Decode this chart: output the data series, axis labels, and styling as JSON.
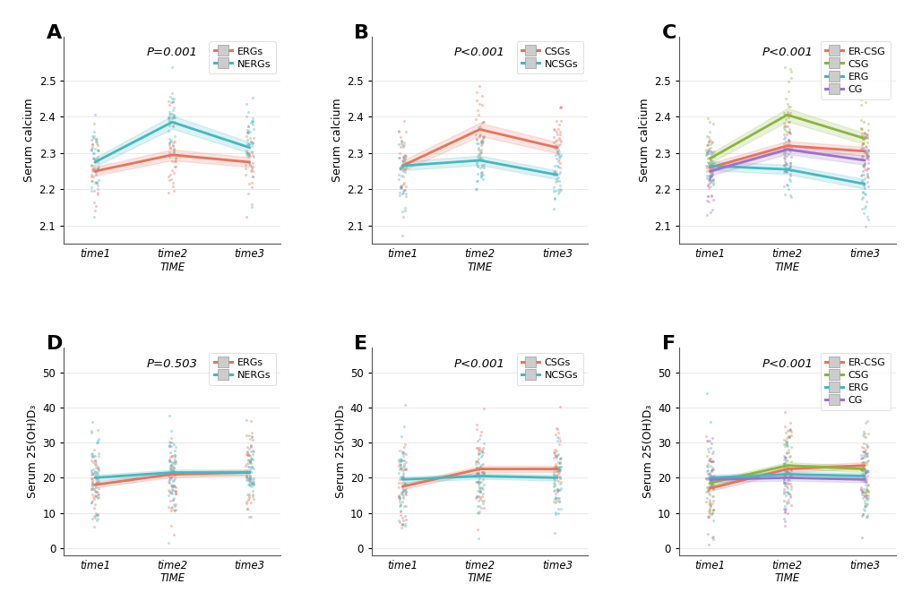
{
  "panels": [
    "A",
    "B",
    "C",
    "D",
    "E",
    "F"
  ],
  "time_labels": [
    "time1",
    "time2",
    "time3"
  ],
  "xlabel": "TIME",
  "A": {
    "pvalue": "P=0.001",
    "ylabel": "Serum calcium",
    "ylim": [
      2.05,
      2.62
    ],
    "yticks": [
      2.1,
      2.2,
      2.3,
      2.4,
      2.5
    ],
    "lines": {
      "ERGs": {
        "mean": [
          2.25,
          2.295,
          2.275
        ],
        "ci": [
          0.012,
          0.015,
          0.013
        ],
        "color": "#E8735A",
        "label": "ERGs"
      },
      "NERGs": {
        "mean": [
          2.275,
          2.385,
          2.315
        ],
        "ci": [
          0.012,
          0.018,
          0.015
        ],
        "color": "#45B8C0",
        "label": "NERGs"
      }
    },
    "legend_labels": [
      "ERGs",
      "NERGs"
    ],
    "legend_colors": [
      "#E8735A",
      "#45B8C0"
    ],
    "scatter_seed": 10,
    "n_points": 35,
    "scatter_params": {
      "ERGs": {
        "t1_mean": 2.25,
        "t1_std": 0.055,
        "t2_mean": 2.295,
        "t2_std": 0.055,
        "t3_mean": 2.275,
        "t3_std": 0.05,
        "color": "#E8735A"
      },
      "NERGs": {
        "t1_mean": 2.275,
        "t1_std": 0.055,
        "t2_mean": 2.385,
        "t2_std": 0.065,
        "t3_mean": 2.315,
        "t3_std": 0.06,
        "color": "#45B8C0"
      }
    }
  },
  "B": {
    "pvalue": "P<0.001",
    "ylabel": "Serum calcium",
    "ylim": [
      2.05,
      2.62
    ],
    "yticks": [
      2.1,
      2.2,
      2.3,
      2.4,
      2.5
    ],
    "lines": {
      "CSGs": {
        "mean": [
          2.265,
          2.365,
          2.315
        ],
        "ci": [
          0.014,
          0.018,
          0.015
        ],
        "color": "#E8735A",
        "label": "CSGs"
      },
      "NCSGs": {
        "mean": [
          2.265,
          2.28,
          2.24
        ],
        "ci": [
          0.012,
          0.013,
          0.012
        ],
        "color": "#45B8C0",
        "label": "NCSGs"
      }
    },
    "legend_labels": [
      "CSGs",
      "NCSGs"
    ],
    "legend_colors": [
      "#E8735A",
      "#45B8C0"
    ],
    "scatter_seed": 20,
    "n_points": 35,
    "scatter_params": {
      "CSGs": {
        "t1_mean": 2.265,
        "t1_std": 0.06,
        "t2_mean": 2.365,
        "t2_std": 0.065,
        "t3_mean": 2.315,
        "t3_std": 0.06,
        "color": "#E8735A"
      },
      "NCSGs": {
        "t1_mean": 2.265,
        "t1_std": 0.05,
        "t2_mean": 2.28,
        "t2_std": 0.05,
        "t3_mean": 2.24,
        "t3_std": 0.05,
        "color": "#45B8C0"
      }
    }
  },
  "C": {
    "pvalue": "P<0.001",
    "ylabel": "Serum calcium",
    "ylim": [
      2.05,
      2.62
    ],
    "yticks": [
      2.1,
      2.2,
      2.3,
      2.4,
      2.5
    ],
    "lines": {
      "ER-CSG": {
        "mean": [
          2.26,
          2.32,
          2.305
        ],
        "ci": [
          0.012,
          0.013,
          0.012
        ],
        "color": "#E8735A",
        "label": "ER-CSG"
      },
      "CSG": {
        "mean": [
          2.285,
          2.405,
          2.34
        ],
        "ci": [
          0.013,
          0.018,
          0.015
        ],
        "color": "#8AB63C",
        "label": "CSG"
      },
      "ERG": {
        "mean": [
          2.265,
          2.255,
          2.215
        ],
        "ci": [
          0.012,
          0.013,
          0.013
        ],
        "color": "#45B8C0",
        "label": "ERG"
      },
      "CG": {
        "mean": [
          2.25,
          2.31,
          2.28
        ],
        "ci": [
          0.012,
          0.013,
          0.012
        ],
        "color": "#9B72CF",
        "label": "CG"
      }
    },
    "legend_labels": [
      "ER-CSG",
      "CSG",
      "ERG",
      "CG"
    ],
    "legend_colors": [
      "#E8735A",
      "#8AB63C",
      "#45B8C0",
      "#9B72CF"
    ],
    "scatter_seed": 30,
    "n_points": 25,
    "scatter_params": {
      "ER-CSG": {
        "t1_mean": 2.26,
        "t1_std": 0.045,
        "t2_mean": 2.32,
        "t2_std": 0.048,
        "t3_mean": 2.305,
        "t3_std": 0.048,
        "color": "#E8735A"
      },
      "CSG": {
        "t1_mean": 2.285,
        "t1_std": 0.05,
        "t2_mean": 2.405,
        "t2_std": 0.06,
        "t3_mean": 2.34,
        "t3_std": 0.055,
        "color": "#8AB63C"
      },
      "ERG": {
        "t1_mean": 2.265,
        "t1_std": 0.045,
        "t2_mean": 2.255,
        "t2_std": 0.045,
        "t3_mean": 2.215,
        "t3_std": 0.048,
        "color": "#45B8C0"
      },
      "CG": {
        "t1_mean": 2.25,
        "t1_std": 0.045,
        "t2_mean": 2.31,
        "t2_std": 0.048,
        "t3_mean": 2.28,
        "t3_std": 0.048,
        "color": "#9B72CF"
      }
    }
  },
  "D": {
    "pvalue": "P=0.503",
    "ylabel": "Serum 25(OH)D₃",
    "ylim": [
      -2,
      57
    ],
    "yticks": [
      0,
      10,
      20,
      30,
      40,
      50
    ],
    "lines": {
      "ERGs": {
        "mean": [
          18.0,
          21.0,
          21.5
        ],
        "ci": [
          0.8,
          0.8,
          0.8
        ],
        "color": "#E8735A",
        "label": "ERGs"
      },
      "NERGs": {
        "mean": [
          20.0,
          21.5,
          21.5
        ],
        "ci": [
          0.8,
          0.8,
          0.8
        ],
        "color": "#45B8C0",
        "label": "NERGs"
      }
    },
    "legend_labels": [
      "ERGs",
      "NERGs"
    ],
    "legend_colors": [
      "#E8735A",
      "#45B8C0"
    ],
    "scatter_seed": 40,
    "n_points": 50,
    "scatter_params": {
      "ERGs": {
        "t1_mean": 18.0,
        "t1_std": 6.5,
        "t2_mean": 21.0,
        "t2_std": 6.0,
        "t3_mean": 21.5,
        "t3_std": 6.0,
        "color": "#E8735A"
      },
      "NERGs": {
        "t1_mean": 20.0,
        "t1_std": 7.0,
        "t2_mean": 21.5,
        "t2_std": 6.5,
        "t3_mean": 21.5,
        "t3_std": 6.5,
        "color": "#45B8C0"
      }
    }
  },
  "E": {
    "pvalue": "P<0.001",
    "ylabel": "Serum 25(OH)D₃",
    "ylim": [
      -2,
      57
    ],
    "yticks": [
      0,
      10,
      20,
      30,
      40,
      50
    ],
    "lines": {
      "CSGs": {
        "mean": [
          17.5,
          22.5,
          22.5
        ],
        "ci": [
          0.8,
          0.9,
          0.9
        ],
        "color": "#E8735A",
        "label": "CSGs"
      },
      "NCSGs": {
        "mean": [
          19.5,
          20.5,
          20.0
        ],
        "ci": [
          0.8,
          0.8,
          0.8
        ],
        "color": "#45B8C0",
        "label": "NCSGs"
      }
    },
    "legend_labels": [
      "CSGs",
      "NCSGs"
    ],
    "legend_colors": [
      "#E8735A",
      "#45B8C0"
    ],
    "scatter_seed": 50,
    "n_points": 50,
    "scatter_params": {
      "CSGs": {
        "t1_mean": 17.5,
        "t1_std": 7.0,
        "t2_mean": 22.5,
        "t2_std": 7.0,
        "t3_mean": 22.5,
        "t3_std": 6.5,
        "color": "#E8735A"
      },
      "NCSGs": {
        "t1_mean": 19.5,
        "t1_std": 6.5,
        "t2_mean": 20.5,
        "t2_std": 6.5,
        "t3_mean": 20.0,
        "t3_std": 6.5,
        "color": "#45B8C0"
      }
    }
  },
  "F": {
    "pvalue": "P<0.001",
    "ylabel": "Serum 25(OH)D₃",
    "ylim": [
      -2,
      57
    ],
    "yticks": [
      0,
      10,
      20,
      30,
      40,
      50
    ],
    "lines": {
      "ER-CSG": {
        "mean": [
          17.0,
          22.5,
          23.5
        ],
        "ci": [
          0.8,
          0.9,
          0.9
        ],
        "color": "#E8735A",
        "label": "ER-CSG"
      },
      "CSG": {
        "mean": [
          18.5,
          23.5,
          22.5
        ],
        "ci": [
          0.8,
          0.9,
          0.9
        ],
        "color": "#8AB63C",
        "label": "CSG"
      },
      "ERG": {
        "mean": [
          20.0,
          21.0,
          20.5
        ],
        "ci": [
          0.8,
          0.8,
          0.8
        ],
        "color": "#45B8C0",
        "label": "ERG"
      },
      "CG": {
        "mean": [
          19.5,
          20.0,
          19.5
        ],
        "ci": [
          0.8,
          0.8,
          0.8
        ],
        "color": "#9B72CF",
        "label": "CG"
      }
    },
    "legend_labels": [
      "ER-CSG",
      "CSG",
      "ERG",
      "CG"
    ],
    "legend_colors": [
      "#E8735A",
      "#8AB63C",
      "#45B8C0",
      "#9B72CF"
    ],
    "scatter_seed": 60,
    "n_points": 30,
    "scatter_params": {
      "ER-CSG": {
        "t1_mean": 17.0,
        "t1_std": 6.5,
        "t2_mean": 22.5,
        "t2_std": 6.5,
        "t3_mean": 23.5,
        "t3_std": 7.0,
        "color": "#E8735A"
      },
      "CSG": {
        "t1_mean": 18.5,
        "t1_std": 7.0,
        "t2_mean": 23.5,
        "t2_std": 7.0,
        "t3_mean": 22.5,
        "t3_std": 6.5,
        "color": "#8AB63C"
      },
      "ERG": {
        "t1_mean": 20.0,
        "t1_std": 6.5,
        "t2_mean": 21.0,
        "t2_std": 6.5,
        "t3_mean": 20.5,
        "t3_std": 6.5,
        "color": "#45B8C0"
      },
      "CG": {
        "t1_mean": 19.5,
        "t1_std": 6.5,
        "t2_mean": 20.0,
        "t2_std": 6.5,
        "t3_mean": 19.5,
        "t3_std": 6.5,
        "color": "#9B72CF"
      }
    }
  }
}
